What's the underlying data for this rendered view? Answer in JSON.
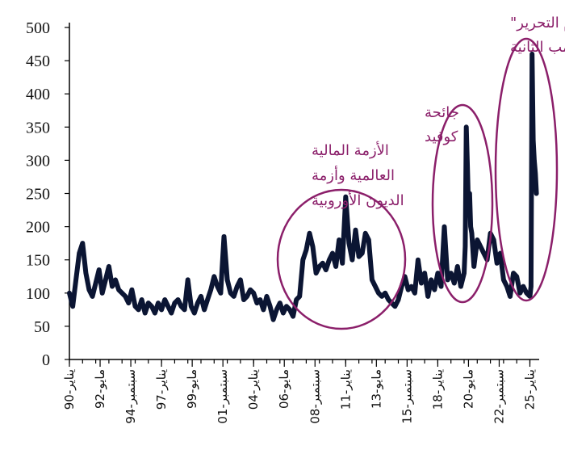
{
  "chart_data": {
    "type": "line",
    "title": "",
    "xlabel": "",
    "ylabel": "",
    "ylim": [
      0,
      500
    ],
    "yticks": [
      0,
      50,
      100,
      150,
      200,
      250,
      300,
      350,
      400,
      450,
      500
    ],
    "grid": false,
    "x_tick_labels": [
      "يناير-90",
      "مايو-92",
      "سبتمبر-94",
      "يناير-97",
      "مايو-99",
      "سبتمبر-01",
      "يناير-04",
      "مايو-06",
      "سبتمبر-08",
      "يناير-11",
      "مايو-13",
      "سبتمبر-15",
      "يناير-18",
      "مايو-20",
      "سبتمبر-22",
      "يناير-25"
    ],
    "x_tick_dates": [
      "1990-01",
      "1992-05",
      "1994-09",
      "1997-01",
      "1999-05",
      "2001-09",
      "2004-01",
      "2006-05",
      "2008-09",
      "2011-01",
      "2013-05",
      "2015-09",
      "2018-01",
      "2020-05",
      "2022-09",
      "2025-01"
    ],
    "colors": {
      "series": "#0B1533",
      "annotation": "#8B1F6A"
    },
    "series": [
      {
        "x": [
          "1990-01",
          "1990-04",
          "1990-07",
          "1990-10",
          "1991-01",
          "1991-04",
          "1991-07",
          "1991-10",
          "1992-01",
          "1992-04",
          "1992-07",
          "1992-10",
          "1993-01",
          "1993-04",
          "1993-07",
          "1993-10",
          "1994-01",
          "1994-04",
          "1994-07",
          "1994-10",
          "1995-01",
          "1995-04",
          "1995-07",
          "1995-10",
          "1996-01",
          "1996-04",
          "1996-07",
          "1996-10",
          "1997-01",
          "1997-04",
          "1997-07",
          "1997-10",
          "1998-01",
          "1998-04",
          "1998-07",
          "1998-10",
          "1999-01",
          "1999-04",
          "1999-07",
          "1999-10",
          "2000-01",
          "2000-04",
          "2000-07",
          "2000-10",
          "2001-01",
          "2001-04",
          "2001-07",
          "2001-10",
          "2002-01",
          "2002-04",
          "2002-07",
          "2002-10",
          "2003-01",
          "2003-04",
          "2003-07",
          "2003-10",
          "2004-01",
          "2004-04",
          "2004-07",
          "2004-10",
          "2005-01",
          "2005-04",
          "2005-07",
          "2005-10",
          "2006-01",
          "2006-04",
          "2006-07",
          "2006-10",
          "2007-01",
          "2007-04",
          "2007-07",
          "2007-10",
          "2008-01",
          "2008-04",
          "2008-07",
          "2008-10",
          "2009-01",
          "2009-04",
          "2009-07",
          "2009-10",
          "2010-01",
          "2010-04",
          "2010-07",
          "2010-10",
          "2011-01",
          "2011-04",
          "2011-07",
          "2011-10",
          "2012-01",
          "2012-04",
          "2012-07",
          "2012-10",
          "2013-01",
          "2013-04",
          "2013-07",
          "2013-10",
          "2014-01",
          "2014-04",
          "2014-07",
          "2014-10",
          "2015-01",
          "2015-04",
          "2015-07",
          "2015-10",
          "2016-01",
          "2016-04",
          "2016-07",
          "2016-10",
          "2017-01",
          "2017-04",
          "2017-07",
          "2017-10",
          "2018-01",
          "2018-04",
          "2018-07",
          "2018-10",
          "2019-01",
          "2019-04",
          "2019-07",
          "2019-10",
          "2020-01",
          "2020-02",
          "2020-03",
          "2020-04",
          "2020-05",
          "2020-06",
          "2020-07",
          "2020-08",
          "2020-10",
          "2021-01",
          "2021-04",
          "2021-07",
          "2021-10",
          "2022-01",
          "2022-04",
          "2022-07",
          "2022-10",
          "2023-01",
          "2023-04",
          "2023-07",
          "2023-10",
          "2024-01",
          "2024-04",
          "2024-07",
          "2024-10",
          "2025-01",
          "2025-02",
          "2025-03",
          "2025-04",
          "2025-05",
          "2025-06",
          "2025-07"
        ],
        "y": [
          100,
          80,
          120,
          160,
          175,
          130,
          105,
          95,
          115,
          135,
          100,
          120,
          140,
          110,
          120,
          105,
          100,
          95,
          85,
          105,
          80,
          75,
          90,
          70,
          85,
          80,
          70,
          85,
          75,
          90,
          80,
          70,
          85,
          90,
          80,
          75,
          120,
          80,
          70,
          85,
          95,
          75,
          90,
          105,
          125,
          110,
          100,
          185,
          120,
          100,
          95,
          110,
          120,
          90,
          95,
          105,
          100,
          85,
          90,
          75,
          95,
          80,
          60,
          75,
          85,
          70,
          80,
          75,
          65,
          90,
          95,
          150,
          165,
          190,
          170,
          130,
          140,
          145,
          135,
          150,
          160,
          140,
          180,
          145,
          245,
          175,
          150,
          195,
          155,
          160,
          190,
          180,
          120,
          110,
          100,
          95,
          100,
          90,
          85,
          80,
          90,
          110,
          125,
          105,
          110,
          100,
          150,
          115,
          130,
          95,
          120,
          105,
          130,
          110,
          200,
          120,
          130,
          115,
          140,
          110,
          130,
          170,
          350,
          290,
          230,
          250,
          200,
          190,
          140,
          180,
          170,
          160,
          150,
          190,
          180,
          145,
          160,
          120,
          110,
          95,
          130,
          125,
          100,
          110,
          100,
          95,
          110,
          460,
          330,
          300,
          280,
          250
        ]
      }
    ],
    "annotations": [
      {
        "lines": [
          "الأزمة المالية",
          "العالمية وأزمة",
          "الديون الأوروبية"
        ]
      },
      {
        "lines": [
          "جائحة",
          "كوفيد"
        ]
      },
      {
        "lines": [
          "رسوم \"يوم التحرير\"",
          "خلال رئاسة ترامب الثانية"
        ]
      }
    ]
  }
}
